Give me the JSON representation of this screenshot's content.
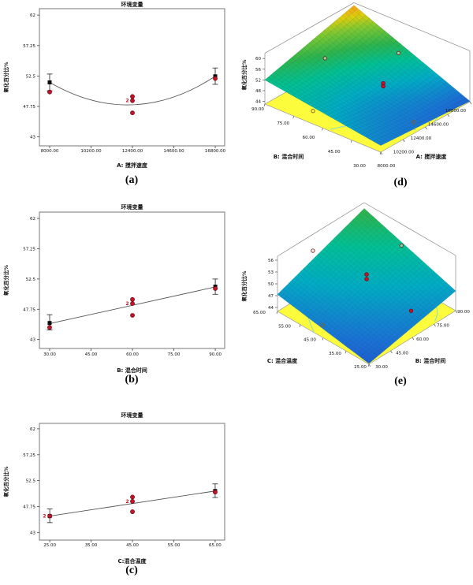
{
  "chart_data": {
    "type": "figure",
    "style_colors": {
      "data_point_red": "#c41226",
      "mean_point_black": "#0b0b0b",
      "fit_line_gray": "#555555",
      "floor_yellow": "#fcfc3c",
      "contour_cyan": "#7fd8d8",
      "surface_low_blue": "#2837c8",
      "surface_mid_green": "#2bb14c",
      "surface_high_orange": "#f59a23"
    },
    "panels_2d": [
      {
        "id": "a",
        "caption": "(a)",
        "title": "环境变量",
        "xlabel": "A: 搅拌速度",
        "ylabel": "氧化百分比%",
        "ytick_labels": [
          "62",
          "57.25",
          "52.5",
          "47.75",
          "43"
        ],
        "ytick_values": [
          62,
          57.25,
          52.5,
          47.75,
          43
        ],
        "ylim": [
          41.6,
          63.0
        ],
        "xtick_labels": [
          "8000.00",
          "10200.00",
          "12400.00",
          "14600.00",
          "16800.00"
        ],
        "xtick_values": [
          8000,
          10200,
          12400,
          14600,
          16800
        ],
        "xlim": [
          7456,
          17302
        ],
        "fit": {
          "kind": "quad",
          "points": [
            [
              8000,
              51.5
            ],
            [
              12400,
              48.0
            ],
            [
              16800,
              52.45
            ]
          ]
        },
        "means": [
          {
            "x": 8000,
            "y": 51.5,
            "lo": 50.2,
            "hi": 52.8
          },
          {
            "x": 16800,
            "y": 52.45,
            "lo": 51.2,
            "hi": 53.75
          }
        ],
        "points": [
          {
            "x": 8000,
            "y": 50.0
          },
          {
            "x": 12400,
            "y": 49.3
          },
          {
            "x": 12400,
            "y": 48.65,
            "count": "2"
          },
          {
            "x": 12400,
            "y": 46.75
          },
          {
            "x": 16800,
            "y": 52.1
          }
        ]
      },
      {
        "id": "b",
        "caption": "(b)",
        "title": "环境变量",
        "xlabel": "B: 混合时间",
        "ylabel": "氧化百分比%",
        "ytick_labels": [
          "62",
          "57.25",
          "52.5",
          "47.75",
          "43"
        ],
        "ytick_values": [
          62,
          57.25,
          52.5,
          47.75,
          43
        ],
        "ylim": [
          41.6,
          63.0
        ],
        "xtick_labels": [
          "30.00",
          "45.00",
          "60.00",
          "75.00",
          "90.00"
        ],
        "xtick_values": [
          30,
          45,
          60,
          75,
          90
        ],
        "xlim": [
          26.3,
          93.4
        ],
        "fit": {
          "kind": "line",
          "points": [
            [
              30,
              45.5
            ],
            [
              90,
              51.25
            ]
          ]
        },
        "means": [
          {
            "x": 30,
            "y": 45.6,
            "lo": 44.5,
            "hi": 46.9
          },
          {
            "x": 90,
            "y": 51.3,
            "lo": 50.1,
            "hi": 52.5
          }
        ],
        "points": [
          {
            "x": 30,
            "y": 44.9
          },
          {
            "x": 60,
            "y": 49.3
          },
          {
            "x": 60,
            "y": 48.65,
            "count": "2"
          },
          {
            "x": 60,
            "y": 46.8
          },
          {
            "x": 90,
            "y": 51.0
          }
        ]
      },
      {
        "id": "c",
        "caption": "(c)",
        "title": "环境变量",
        "xlabel": "C:混合温度",
        "ylabel": "氧化百分比%",
        "ytick_labels": [
          "62",
          "57.25",
          "52.5",
          "47.75",
          "43"
        ],
        "ytick_values": [
          62,
          57.25,
          52.5,
          47.75,
          43
        ],
        "ylim": [
          41.6,
          63.0
        ],
        "xtick_labels": [
          "25.00",
          "35.00",
          "45.00",
          "55.00",
          "65.00"
        ],
        "xtick_values": [
          25,
          35,
          45,
          55,
          65
        ],
        "xlim": [
          22.5,
          67.3
        ],
        "fit": {
          "kind": "line",
          "points": [
            [
              25,
              46.0
            ],
            [
              65,
              50.6
            ]
          ]
        },
        "means": [
          {
            "x": 25,
            "y": 46.0,
            "lo": 44.8,
            "hi": 47.3
          },
          {
            "x": 65,
            "y": 50.6,
            "lo": 49.4,
            "hi": 51.9
          }
        ],
        "points": [
          {
            "x": 25,
            "y": 46.0,
            "count": "2"
          },
          {
            "x": 45,
            "y": 49.5
          },
          {
            "x": 45,
            "y": 48.7,
            "count": "2"
          },
          {
            "x": 45,
            "y": 46.8
          },
          {
            "x": 65,
            "y": 50.4
          }
        ]
      }
    ],
    "panels_3d": [
      {
        "id": "d",
        "caption": "(d)",
        "zlabel": "氧化百分比%",
        "ztick_labels": [
          "60",
          "56",
          "52",
          "48",
          "44"
        ],
        "ztick_values": [
          60,
          56,
          52,
          48,
          44
        ],
        "axis_left": {
          "label": "B: 混合时间",
          "tick_labels": [
            "90.00",
            "75.00",
            "60.00",
            "45.00",
            "30.00"
          ]
        },
        "axis_right": {
          "label": "A: 搅拌速度",
          "tick_labels": [
            "8000.00",
            "10200.00",
            "12400.00",
            "14600.00",
            "16800.00"
          ]
        },
        "surface": {
          "front": 45.5,
          "right": 43.2,
          "left": 52.0,
          "back": 61.0,
          "dip": 2.2,
          "zbase": 43,
          "ztop": 62,
          "cmap_min": 40,
          "cmap_max": 62.5
        },
        "markers": {
          "center_dots": [
            {
              "u": 0.6,
              "v": 0.44,
              "z": 49.5
            },
            {
              "u": 0.6,
              "v": 0.44,
              "z": 48.4
            }
          ],
          "open_circles": [
            {
              "u": 0.35,
              "v": 0.75,
              "z": 58
            },
            {
              "u": 0.85,
              "v": 0.5,
              "z": 55
            }
          ],
          "floor_circles": [
            {
              "u": 0.15,
              "v": 0.7
            },
            {
              "u": 0.5,
              "v": 0.1
            }
          ],
          "floor_dots": []
        }
      },
      {
        "id": "e",
        "caption": "(e)",
        "zlabel": "氧化百分比%",
        "ztick_labels": [
          "56",
          "53",
          "50",
          "47",
          "44"
        ],
        "ztick_values": [
          56,
          53,
          50,
          47,
          44
        ],
        "axis_left": {
          "label": "C: 混合温度",
          "tick_labels": [
            "65.00",
            "55.00",
            "45.00",
            "35.00",
            "25.00"
          ]
        },
        "axis_right": {
          "label": "B: 混合时间",
          "tick_labels": [
            "30.00",
            "45.00",
            "60.00",
            "75.00",
            "90.00"
          ]
        },
        "surface": {
          "front": 43.2,
          "right": 48.0,
          "left": 47.3,
          "back": 55.5,
          "dip": 0,
          "zbase": 43,
          "ztop": 57,
          "cmap_min": 40,
          "cmap_max": 64
        },
        "markers": {
          "center_dots": [
            {
              "u": 0.5,
              "v": 0.5,
              "z": 52.3
            },
            {
              "u": 0.5,
              "v": 0.5,
              "z": 51.1
            }
          ],
          "open_circles": [
            {
              "u": 0.25,
              "v": 0.85,
              "z": 57
            },
            {
              "u": 0.85,
              "v": 0.45,
              "z": 55.5
            }
          ],
          "floor_circles": [
            {
              "u": 0.12,
              "v": 0.62
            }
          ],
          "floor_dots": [
            {
              "u": 0.75,
              "v": 0.25
            }
          ]
        }
      }
    ]
  }
}
